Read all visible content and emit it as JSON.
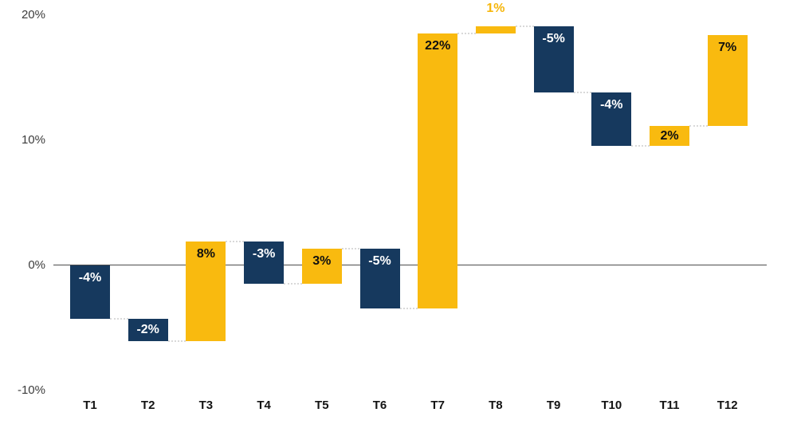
{
  "chart_data": {
    "type": "bar",
    "subtype": "waterfall",
    "title": "",
    "xlabel": "",
    "ylabel": "",
    "grid": false,
    "legend": null,
    "categories": [
      "T1",
      "T2",
      "T3",
      "T4",
      "T5",
      "T6",
      "T7",
      "T8",
      "T9",
      "T10",
      "T11",
      "T12"
    ],
    "values": [
      -4,
      -2,
      8,
      -3,
      3,
      -5,
      22,
      1,
      -5,
      -4,
      2,
      7
    ],
    "value_labels": [
      "-4%",
      "-2%",
      "8%",
      "-3%",
      "3%",
      "-5%",
      "22%",
      "1%",
      "-5%",
      "-4%",
      "2%",
      "7%"
    ],
    "cumulative_start": [
      0,
      -4.3,
      -6.1,
      1.9,
      -1.5,
      1.3,
      -3.5,
      18.5,
      19.1,
      13.8,
      9.5,
      11.1
    ],
    "cumulative_end": [
      -4.3,
      -6.1,
      1.9,
      -1.5,
      1.3,
      -3.5,
      18.5,
      19.1,
      13.8,
      9.5,
      11.1,
      18.4
    ],
    "ylim": [
      -10,
      20
    ],
    "ytick_values": [
      20,
      10,
      0,
      -10
    ],
    "ytick_labels": [
      "20%",
      "10%",
      "0%",
      "-10%"
    ],
    "connectors": true,
    "colors": {
      "positive": "#F9BA0F",
      "negative": "#16395E",
      "label_on_positive": "#101010",
      "label_on_negative": "#FFFFFF",
      "outside_label": "#F6B60B",
      "axis_text": "#3C3C3C",
      "category_text": "#141414",
      "zero_line": "#4D4D4D",
      "connector": "#D9D9D9",
      "background": "#FFFFFF"
    }
  }
}
